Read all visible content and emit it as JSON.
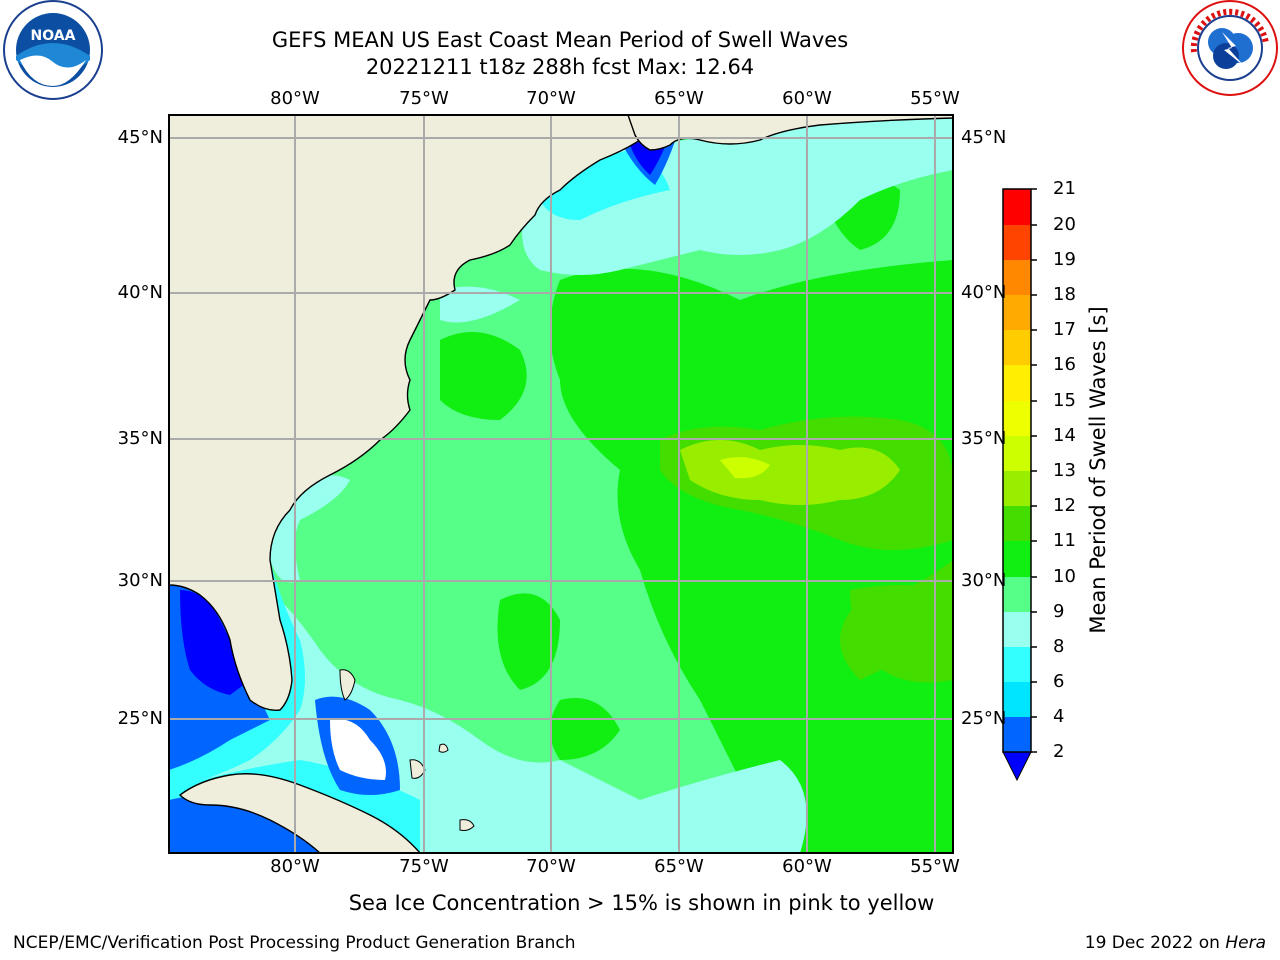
{
  "title_line1": "GEFS MEAN US East Coast Mean Period of Swell Waves",
  "title_line2": "20221211 t18z 288h fcst   Max: 12.64",
  "logos": {
    "left": "NOAA",
    "right": "NATIONAL WEATHER SERVICE"
  },
  "map": {
    "lon_labels": [
      "80°W",
      "75°W",
      "70°W",
      "65°W",
      "60°W",
      "55°W"
    ],
    "lat_labels": [
      "45°N",
      "40°N",
      "35°N",
      "30°N",
      "25°N"
    ],
    "extent": {
      "lon_min": -85,
      "lon_max": -54.3,
      "lat_min": 20.2,
      "lat_max": 46
    },
    "land_color": "#EFEDDC",
    "grid_color": "#AAAAAA"
  },
  "colorbar": {
    "title": "Mean Period of Swell Waves [s]",
    "ticks": [
      "2",
      "4",
      "6",
      "8",
      "9",
      "10",
      "11",
      "12",
      "13",
      "14",
      "15",
      "16",
      "17",
      "18",
      "19",
      "20",
      "21"
    ],
    "extend_color": "#0000FF",
    "colors": [
      "#0066FF",
      "#00E5FF",
      "#33FFFF",
      "#66FFEE",
      "#99FFEE",
      "#55FF88",
      "#11EE11",
      "#44DD00",
      "#99EE00",
      "#CCFF00",
      "#EEFF00",
      "#FFEE00",
      "#FFCC00",
      "#FFAA00",
      "#FF8800",
      "#FF4400",
      "#FF0000",
      "#EE0000"
    ]
  },
  "note": "Sea Ice Concentration > 15% is shown in pink to yellow",
  "footer": {
    "left": "NCEP/EMC/Verification Post Processing Product Generation Branch",
    "date": "19 Dec 2022 on ",
    "host": "Hera"
  }
}
